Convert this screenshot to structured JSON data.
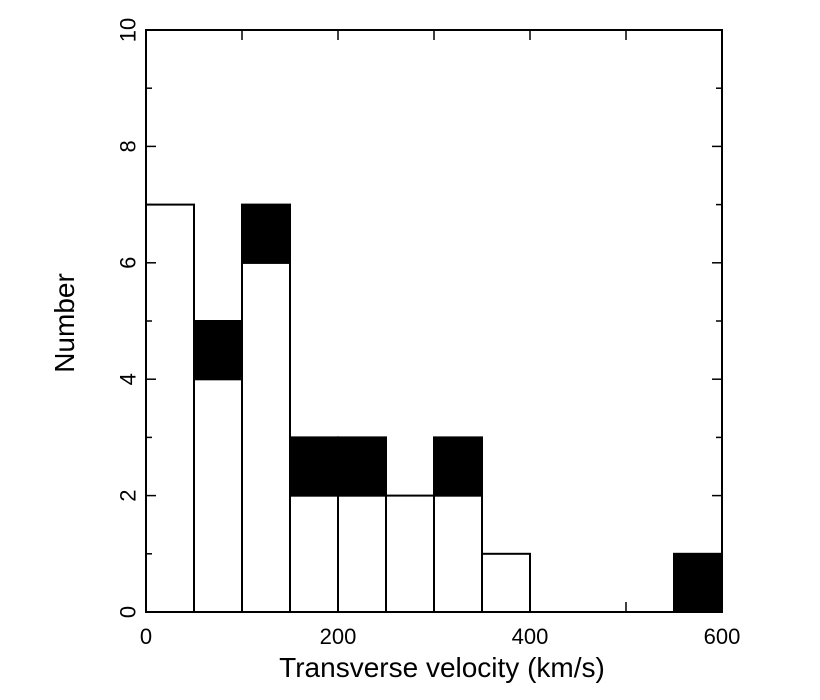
{
  "chart_data": {
    "type": "bar",
    "subtype": "stacked-histogram",
    "xlabel": "Transverse velocity (km/s)",
    "ylabel": "Number",
    "xlim": [
      0,
      600
    ],
    "ylim": [
      0,
      10
    ],
    "x_ticks": [
      0,
      200,
      400,
      600
    ],
    "y_ticks": [
      0,
      2,
      4,
      6,
      8,
      10
    ],
    "bin_width": 50,
    "bins": [
      0,
      50,
      100,
      150,
      200,
      250,
      300,
      350,
      400,
      450,
      500,
      550
    ],
    "series": [
      {
        "fill": "white",
        "values": [
          7,
          4,
          6,
          2,
          2,
          2,
          2,
          1,
          0,
          0,
          0,
          0
        ]
      },
      {
        "fill": "black",
        "values": [
          0,
          1,
          1,
          1,
          1,
          0,
          1,
          0,
          0,
          0,
          0,
          1
        ]
      }
    ],
    "grid": false,
    "legend": "none"
  }
}
